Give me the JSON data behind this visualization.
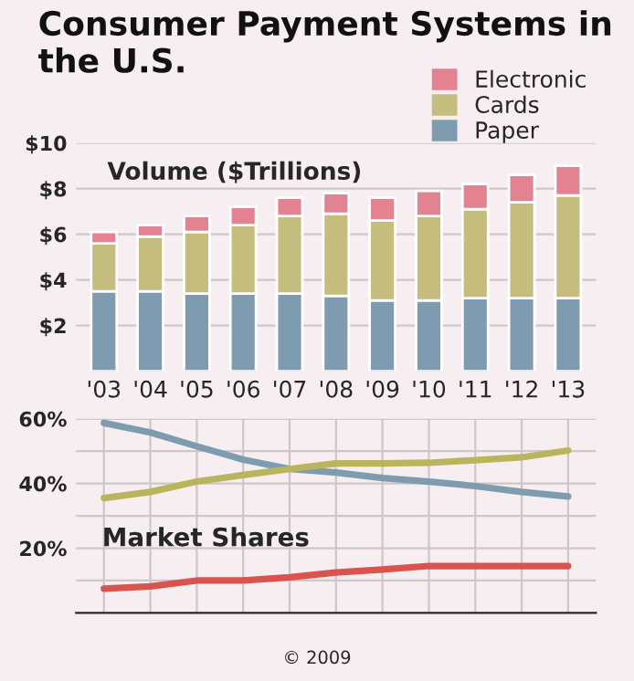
{
  "chart_data": [
    {
      "type": "bar",
      "title": "Consumer Payment Systems in the U.S.",
      "subtitle": "Volume ($Trillions)",
      "stacked": true,
      "categories": [
        "'03",
        "'04",
        "'05",
        "'06",
        "'07",
        "'08",
        "'09",
        "'10",
        "'11",
        "'12",
        "'13"
      ],
      "series": [
        {
          "name": "Paper",
          "color": "#7f9bb0",
          "values": [
            3.5,
            3.5,
            3.4,
            3.4,
            3.4,
            3.3,
            3.1,
            3.1,
            3.2,
            3.2,
            3.2
          ]
        },
        {
          "name": "Cards",
          "color": "#c4bd7e",
          "values": [
            2.1,
            2.4,
            2.7,
            3.0,
            3.4,
            3.6,
            3.5,
            3.7,
            3.9,
            4.2,
            4.5
          ]
        },
        {
          "name": "Electronic",
          "color": "#e38391",
          "values": [
            0.5,
            0.5,
            0.7,
            0.8,
            0.8,
            0.9,
            1.0,
            1.1,
            1.1,
            1.2,
            1.3
          ]
        }
      ],
      "ylim": [
        0,
        10
      ],
      "yticks": [
        {
          "value": 2,
          "label": "$2"
        },
        {
          "value": 4,
          "label": "$4"
        },
        {
          "value": 6,
          "label": "$6"
        },
        {
          "value": 8,
          "label": "$8"
        },
        {
          "value": 10,
          "label": "$10"
        }
      ],
      "grid": "y",
      "legend": "top right"
    },
    {
      "type": "line",
      "title": "Market Shares",
      "categories": [
        null,
        null,
        null,
        null,
        null,
        null,
        null,
        null,
        null,
        null,
        null
      ],
      "series": [
        {
          "color": "#7f9bb0",
          "values": [
            58.7,
            55.8,
            51.5,
            47.4,
            44.5,
            43.4,
            41.7,
            40.6,
            39.2,
            37.4,
            36
          ]
        },
        {
          "color": "#bab45c",
          "values": [
            35.5,
            37.4,
            40.6,
            42.6,
            44.5,
            46.2,
            46.2,
            46.4,
            47.2,
            48.1,
            50.2
          ]
        },
        {
          "color": "#d9534f",
          "values": [
            7.5,
            8.2,
            10,
            10,
            11,
            12.5,
            13.4,
            14.5,
            14.5,
            14.5,
            14.5
          ]
        }
      ],
      "ylim": [
        0,
        60
      ],
      "yticks": [
        {
          "value": 10,
          "label": null
        },
        {
          "value": 20,
          "label": "20%"
        },
        {
          "value": 30,
          "label": null
        },
        {
          "value": 40,
          "label": "40%"
        },
        {
          "value": 50,
          "label": null
        },
        {
          "value": 60,
          "label": "60%"
        }
      ],
      "grid": true,
      "line_style": "solid",
      "marker": "none",
      "annotations": [
        "© 2009"
      ]
    }
  ]
}
